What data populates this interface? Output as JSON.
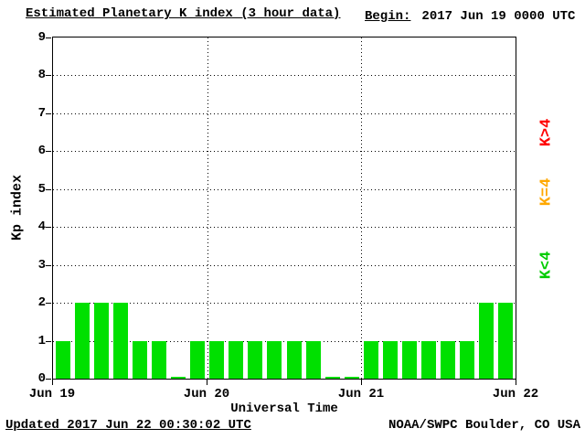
{
  "header": {
    "title": "Estimated Planetary K index (3 hour data)",
    "begin_label": "Begin:",
    "begin_value": "2017 Jun 19 0000 UTC"
  },
  "chart_data": {
    "type": "bar",
    "title": "Estimated Planetary K index (3 hour data)",
    "begin": "2017 Jun 19 0000 UTC",
    "xlabel": "Universal Time",
    "ylabel": "Kp index",
    "ylim": [
      0,
      9
    ],
    "y_ticks": [
      0,
      1,
      2,
      3,
      4,
      5,
      6,
      7,
      8,
      9
    ],
    "x_ticks": [
      "Jun 19",
      "Jun 20",
      "Jun 21",
      "Jun 22"
    ],
    "bar_interval_hours": 3,
    "values": [
      1,
      2,
      2,
      2,
      1,
      1,
      0,
      1,
      1,
      1,
      1,
      1,
      1,
      1,
      0,
      0,
      1,
      1,
      1,
      1,
      1,
      1,
      2,
      2
    ],
    "bar_color_rules": [
      {
        "condition": "K<4",
        "color": "#00e000"
      },
      {
        "condition": "K=4",
        "color": "#ffa800"
      },
      {
        "condition": "K>4",
        "color": "#ff0000"
      }
    ],
    "grid": true,
    "legend_position": "right"
  },
  "legend": {
    "items": [
      {
        "label": "K>4",
        "color": "#ff0000"
      },
      {
        "label": "K=4",
        "color": "#ffa800"
      },
      {
        "label": "K<4",
        "color": "#00cc00"
      }
    ]
  },
  "footer": {
    "updated": "Updated 2017 Jun 22 00:30:02 UTC",
    "credit": "NOAA/SWPC Boulder, CO USA"
  }
}
